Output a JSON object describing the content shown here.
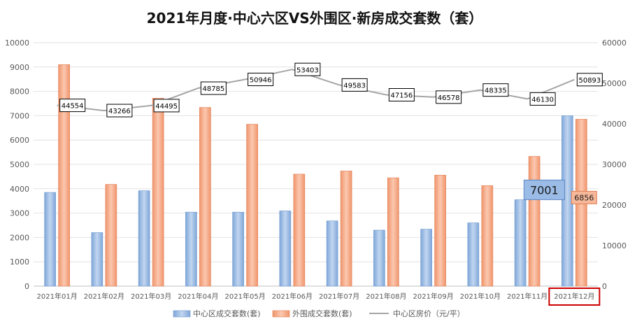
{
  "chart_data": {
    "type": "bar",
    "title": "2021年月度·中心六区VS外围区·新房成交套数（套）",
    "categories": [
      "2021年01月",
      "2021年02月",
      "2021年03月",
      "2021年04月",
      "2021年05月",
      "2021年06月",
      "2021年07月",
      "2021年08月",
      "2021年09月",
      "2021年10月",
      "2021年11月",
      "2021年12月"
    ],
    "series": [
      {
        "name": "中心区成交套数(套)",
        "type": "bar",
        "axis": "left",
        "color": "#8FB4E3",
        "values": [
          3850,
          2200,
          3920,
          3040,
          3040,
          3090,
          2680,
          2300,
          2340,
          2600,
          3550,
          7001
        ]
      },
      {
        "name": "外围成交套数(套)",
        "type": "bar",
        "axis": "left",
        "color": "#F4A582",
        "values": [
          9100,
          4180,
          7720,
          7340,
          6650,
          4600,
          4730,
          4450,
          4560,
          4130,
          5330,
          6856
        ]
      },
      {
        "name": "中心区房价（元/平）",
        "type": "line",
        "axis": "right",
        "color": "#a6a6a6",
        "values": [
          44554,
          43266,
          44495,
          48785,
          50946,
          53403,
          49583,
          47156,
          46578,
          48335,
          46130,
          50893
        ]
      }
    ],
    "y_left": {
      "min": 0,
      "max": 10000,
      "step": 1000
    },
    "y_right": {
      "min": 0,
      "max": 60000,
      "step": 10000
    },
    "line_labels": [
      "44554",
      "43266",
      "44495",
      "48785",
      "50946",
      "53403",
      "49583",
      "47156",
      "46578",
      "48335",
      "46130",
      "50893"
    ],
    "bar_callouts": {
      "center_last": "7001",
      "outer_last": "6856"
    },
    "highlighted_category": "2021年12月",
    "legend_position": "bottom",
    "grid": true
  }
}
